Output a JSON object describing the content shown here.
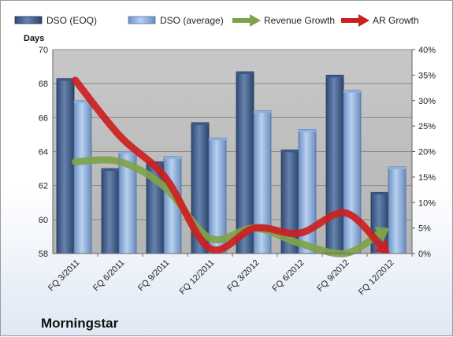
{
  "chart_data": {
    "type": "bar",
    "brand": "Morningstar",
    "y_axis_title": "Days",
    "categories": [
      "FQ 3/2011",
      "FQ 6/2011",
      "FQ 9/2011",
      "FQ 12/2011",
      "FQ 3/2012",
      "FQ 6/2012",
      "FQ 9/2012",
      "FQ 12/2012"
    ],
    "ylim": [
      58,
      70
    ],
    "yticks": [
      58,
      60,
      62,
      64,
      66,
      68,
      70
    ],
    "y2lim": [
      0,
      40
    ],
    "y2ticks": [
      "0%",
      "5%",
      "10%",
      "15%",
      "20%",
      "25%",
      "30%",
      "35%",
      "40%"
    ],
    "grid": true,
    "legend_position": "top",
    "series": [
      {
        "name": "DSO (EOQ)",
        "kind": "bar",
        "axis": "left",
        "color": "#4f6b96",
        "values": [
          68.3,
          63.0,
          63.4,
          65.7,
          68.7,
          64.1,
          68.5,
          61.6
        ]
      },
      {
        "name": "DSO (average)",
        "kind": "bar",
        "axis": "left",
        "color": "#9bb9e2",
        "values": [
          67.0,
          64.0,
          63.7,
          64.8,
          66.4,
          65.3,
          67.6,
          63.1
        ]
      },
      {
        "name": "Revenue Growth",
        "kind": "line",
        "axis": "right",
        "color": "#7fa34a",
        "values": [
          18,
          18,
          13,
          3,
          5,
          2,
          0,
          5
        ]
      },
      {
        "name": "AR Growth",
        "kind": "line",
        "axis": "right",
        "color": "#cc2020",
        "values": [
          34,
          23,
          15,
          1,
          5,
          4,
          8,
          0
        ]
      }
    ]
  }
}
